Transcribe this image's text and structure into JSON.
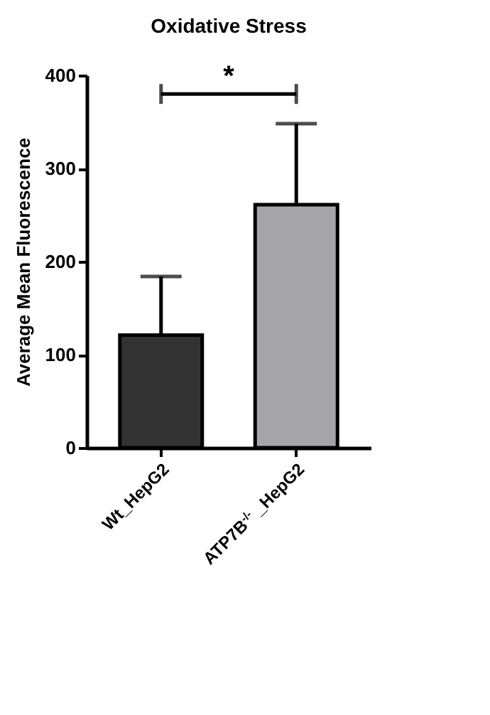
{
  "chart_data": {
    "type": "bar",
    "title": "Oxidative Stress",
    "ylabel": "Average Mean Fluorescence",
    "categories": [
      "Wt_HepG2",
      "ATP7B$^{-/-}$ _HepG2"
    ],
    "values": [
      121,
      261
    ],
    "colors": [
      "#333333",
      "#a5a5a7"
    ],
    "errors": [
      [
        121,
        184
      ],
      [
        261,
        348
      ]
    ],
    "ylim": [
      0,
      400
    ],
    "yticks": [
      0,
      100,
      200,
      300,
      400
    ],
    "grid": false,
    "annotations": [
      "*"
    ]
  }
}
